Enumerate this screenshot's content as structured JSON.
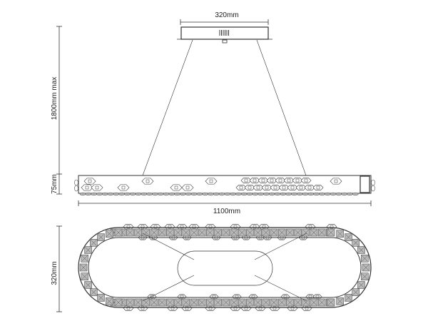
{
  "dimensions": {
    "canopy_width": "320mm",
    "drop_height": "1800mm max",
    "body_height": "75mm",
    "body_length": "1100mm",
    "body_depth": "320mm"
  },
  "colors": {
    "line": "#333333",
    "crystal": "#555555",
    "crystal_fill": "#b9b9b9"
  }
}
